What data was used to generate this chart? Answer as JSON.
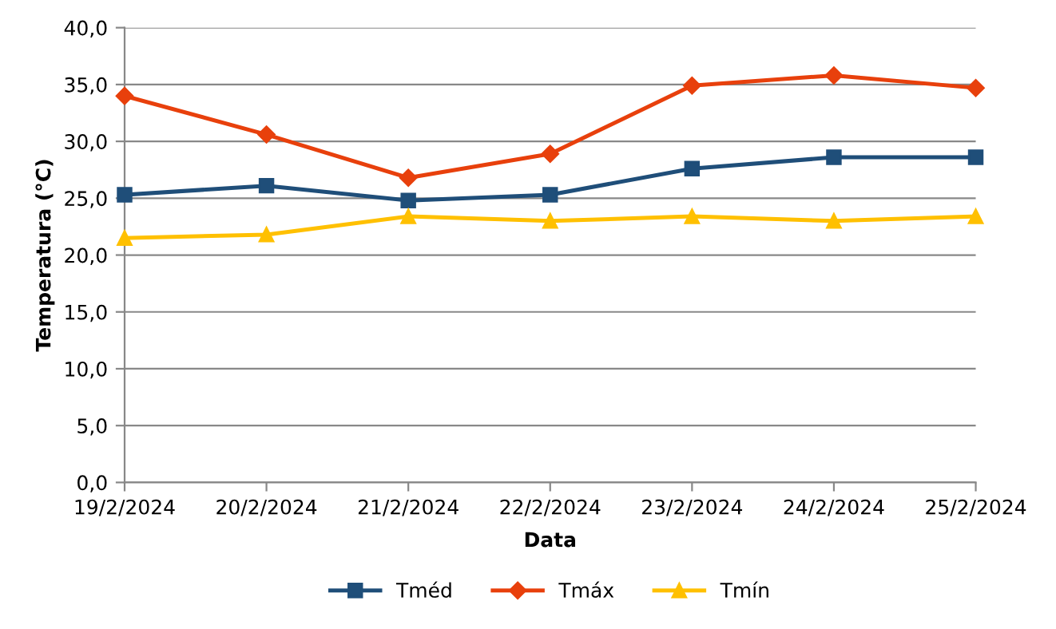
{
  "chart_data": {
    "type": "line",
    "xlabel": "Data",
    "ylabel": "Temperatura (°C)",
    "categories": [
      "19/2/2024",
      "20/2/2024",
      "21/2/2024",
      "22/2/2024",
      "23/2/2024",
      "24/2/2024",
      "25/2/2024"
    ],
    "series": [
      {
        "name": "Tméd",
        "color": "#1f4e79",
        "marker": "square",
        "values": [
          25.3,
          26.1,
          24.8,
          25.3,
          27.6,
          28.6,
          28.6
        ]
      },
      {
        "name": "Tmáx",
        "color": "#e8400c",
        "marker": "diamond",
        "values": [
          34.0,
          30.6,
          26.8,
          28.9,
          34.9,
          35.8,
          34.7
        ]
      },
      {
        "name": "Tmín",
        "color": "#ffc000",
        "marker": "triangle",
        "values": [
          21.5,
          21.8,
          23.4,
          23.0,
          23.4,
          23.0,
          23.4
        ]
      }
    ],
    "ylim": [
      0,
      40
    ],
    "yticks": [
      {
        "value": 0,
        "label": "0,0"
      },
      {
        "value": 5,
        "label": "5,0"
      },
      {
        "value": 10,
        "label": "10,0"
      },
      {
        "value": 15,
        "label": "15,0"
      },
      {
        "value": 20,
        "label": "20,0"
      },
      {
        "value": 25,
        "label": "25,0"
      },
      {
        "value": 30,
        "label": "30,0"
      },
      {
        "value": 35,
        "label": "35,0"
      },
      {
        "value": 40,
        "label": "40,0"
      }
    ],
    "grid": "y",
    "legend": "bottom",
    "line_style": "solid"
  }
}
